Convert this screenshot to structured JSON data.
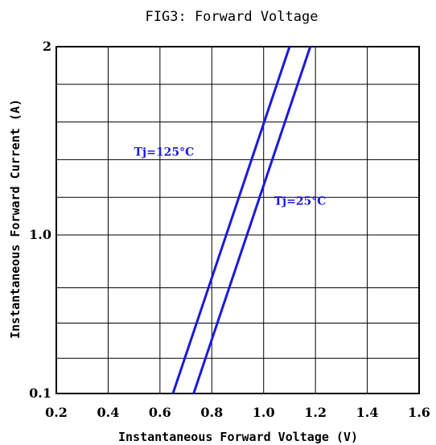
{
  "chart_data": {
    "type": "line",
    "title": "FIG3: Forward Voltage",
    "xlabel": "Instantaneous Forward Voltage (V)",
    "ylabel": "Instantaneous Forward Current (A)",
    "xlim": [
      0.2,
      1.6
    ],
    "ylim": [
      0.1,
      2
    ],
    "y_scale": "piecewise-linear",
    "x_ticks": [
      "0.2",
      "0.4",
      "0.6",
      "0.8",
      "1.0",
      "1.2",
      "1.4",
      "1.6"
    ],
    "y_ticks": [
      {
        "value": 0.1,
        "label": "0.1"
      },
      {
        "value": 1.0,
        "label": "1.0"
      },
      {
        "value": 2,
        "label": "2"
      }
    ],
    "grid": true,
    "colors": {
      "series": "#1a1adb",
      "grid": "#000000",
      "frame": "#000000"
    },
    "series": [
      {
        "name": "Tj=125°C",
        "x": [
          0.65,
          1.1
        ],
        "y": [
          0.1,
          2
        ]
      },
      {
        "name": "Tj=25°C",
        "x": [
          0.73,
          1.18
        ],
        "y": [
          0.1,
          2
        ]
      }
    ]
  }
}
